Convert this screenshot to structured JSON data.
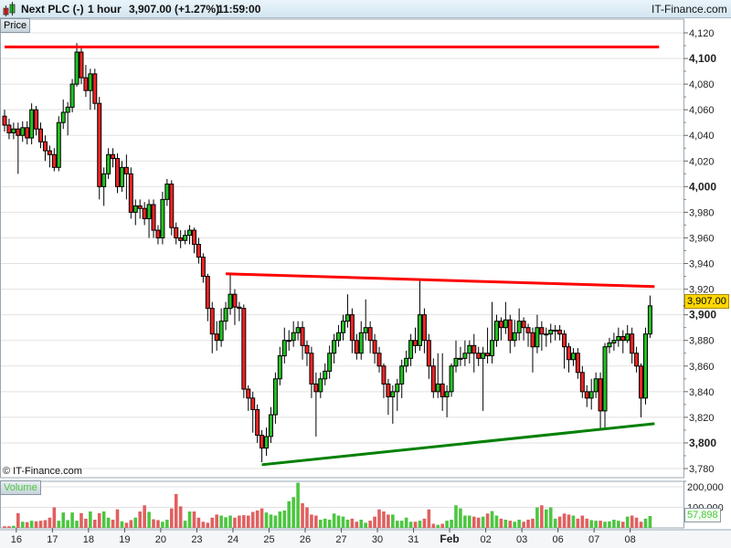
{
  "header": {
    "instrument": "Next PLC (-)",
    "interval": "1 hour",
    "price_change": "3,907.00 (+1.27%)",
    "time": "11:59:00",
    "brand": "IT-Finance.com"
  },
  "panels": {
    "price_label": "Price",
    "volume_label": "Volume",
    "watermark": "© IT-Finance.com"
  },
  "last_price_label": "3,907.00",
  "last_volume_label": "57,898",
  "colors": {
    "up": "#22c322",
    "down": "#f22424",
    "resistance": "#ff0000",
    "support": "#008000",
    "price_tag": "#ffd700"
  },
  "chart_data": [
    {
      "type": "candlestick",
      "title": "",
      "y_ticks": [
        "4,120",
        "4,100",
        "4,080",
        "4,060",
        "4,040",
        "4,020",
        "4,000",
        "3,980",
        "3,960",
        "3,940",
        "3,920",
        "3,900",
        "3,880",
        "3,860",
        "3,840",
        "3,820",
        "3,800",
        "3,780"
      ],
      "ylim": [
        3775,
        4130
      ],
      "x_labels": [
        "16",
        "17",
        "18",
        "19",
        "20",
        "23",
        "24",
        "25",
        "26",
        "27",
        "30",
        "31",
        "Feb",
        "02",
        "03",
        "06",
        "07",
        "08"
      ],
      "grid": true,
      "open": [
        4055,
        4048,
        4042,
        4045,
        4040,
        4046,
        4038,
        4060,
        4045,
        4035,
        4028,
        4025,
        4015,
        4050,
        4058,
        4062,
        4080,
        4105,
        4085,
        4075,
        4088,
        4065,
        4000,
        4010,
        4025,
        4022,
        4000,
        4015,
        4010,
        3980,
        3985,
        3983,
        3975,
        3986,
        3966,
        3960,
        3990,
        4002,
        3968,
        3960,
        3958,
        3962,
        3966,
        3955,
        3945,
        3930,
        3905,
        3885,
        3880,
        3895,
        3905,
        3916,
        3906,
        3905,
        3842,
        3835,
        3826,
        3806,
        3796,
        3805,
        3822,
        3850,
        3868,
        3880,
        3880,
        3886,
        3890,
        3876,
        3870,
        3846,
        3840,
        3850,
        3856,
        3870,
        3880,
        3886,
        3895,
        3900,
        3880,
        3870,
        3886,
        3890,
        3880,
        3870,
        3860,
        3846,
        3836,
        3840,
        3846,
        3860,
        3866,
        3880,
        3876,
        3900,
        3880,
        3860,
        3840,
        3846,
        3836,
        3840,
        3860,
        3866,
        3866,
        3870,
        3876,
        3870,
        3866,
        3870,
        3868,
        3880,
        3895,
        3890,
        3896,
        3880,
        3886,
        3895,
        3890,
        3886,
        3875,
        3890,
        3885,
        3885,
        3888,
        3888,
        3885,
        3875,
        3865,
        3870,
        3855,
        3840,
        3835,
        3840,
        3850,
        3825,
        3875,
        3878,
        3880,
        3883,
        3880,
        3885,
        3870,
        3860,
        3835,
        3885
      ],
      "high": [
        4060,
        4053,
        4050,
        4050,
        4051,
        4051,
        4065,
        4063,
        4050,
        4040,
        4032,
        4030,
        4055,
        4068,
        4066,
        4084,
        4112,
        4108,
        4095,
        4092,
        4092,
        4070,
        4015,
        4030,
        4030,
        4026,
        4020,
        4025,
        4015,
        3990,
        3990,
        3988,
        3990,
        3990,
        3970,
        3996,
        4006,
        4005,
        3972,
        3966,
        3966,
        3970,
        3968,
        3960,
        3948,
        3932,
        3910,
        3895,
        3905,
        3910,
        3932,
        3920,
        3910,
        3908,
        3845,
        3840,
        3830,
        3810,
        3812,
        3828,
        3855,
        3875,
        3890,
        3888,
        3895,
        3895,
        3895,
        3880,
        3875,
        3855,
        3855,
        3862,
        3876,
        3885,
        3892,
        3900,
        3916,
        3905,
        3885,
        3895,
        3912,
        3895,
        3885,
        3875,
        3862,
        3850,
        3845,
        3850,
        3865,
        3872,
        3885,
        3890,
        3928,
        3905,
        3885,
        3866,
        3870,
        3870,
        3845,
        3862,
        3880,
        3875,
        3880,
        3880,
        3885,
        3875,
        3875,
        3890,
        3910,
        3900,
        3898,
        3910,
        3900,
        3896,
        3905,
        3898,
        3893,
        3890,
        3900,
        3895,
        3890,
        3893,
        3892,
        3892,
        3888,
        3878,
        3874,
        3874,
        3860,
        3845,
        3850,
        3855,
        3855,
        3878,
        3882,
        3886,
        3890,
        3888,
        3892,
        3890,
        3875,
        3862,
        3890,
        3915
      ],
      "low": [
        4043,
        4037,
        4037,
        4010,
        4035,
        4033,
        4033,
        4040,
        4030,
        4020,
        4015,
        4012,
        4012,
        4045,
        4040,
        4058,
        4078,
        4080,
        4070,
        4060,
        4060,
        3990,
        3985,
        4006,
        4015,
        3995,
        3996,
        3990,
        3975,
        3970,
        3975,
        3970,
        3960,
        3960,
        3955,
        3955,
        3985,
        3962,
        3955,
        3952,
        3955,
        3955,
        3948,
        3940,
        3925,
        3895,
        3870,
        3872,
        3875,
        3888,
        3900,
        3892,
        3895,
        3835,
        3825,
        3808,
        3800,
        3785,
        3790,
        3800,
        3815,
        3845,
        3862,
        3872,
        3875,
        3880,
        3865,
        3860,
        3835,
        3805,
        3835,
        3845,
        3850,
        3862,
        3875,
        3880,
        3890,
        3870,
        3865,
        3865,
        3880,
        3870,
        3862,
        3855,
        3835,
        3822,
        3815,
        3825,
        3835,
        3855,
        3860,
        3870,
        3872,
        3870,
        3850,
        3835,
        3835,
        3825,
        3820,
        3836,
        3855,
        3860,
        3860,
        3862,
        3855,
        3860,
        3825,
        3862,
        3862,
        3875,
        3880,
        3885,
        3870,
        3875,
        3880,
        3880,
        3875,
        3855,
        3870,
        3872,
        3875,
        3878,
        3880,
        3880,
        3858,
        3855,
        3860,
        3850,
        3835,
        3828,
        3826,
        3835,
        3810,
        3812,
        3870,
        3872,
        3875,
        3870,
        3878,
        3862,
        3855,
        3820,
        3830,
        3882
      ],
      "close": [
        4048,
        4042,
        4045,
        4040,
        4046,
        4038,
        4060,
        4045,
        4035,
        4028,
        4025,
        4015,
        4050,
        4058,
        4062,
        4080,
        4105,
        4085,
        4075,
        4088,
        4065,
        4000,
        4010,
        4025,
        4022,
        4000,
        4015,
        4010,
        3980,
        3985,
        3983,
        3975,
        3986,
        3966,
        3960,
        3990,
        4002,
        3968,
        3960,
        3958,
        3962,
        3966,
        3955,
        3945,
        3930,
        3905,
        3885,
        3880,
        3895,
        3905,
        3916,
        3906,
        3905,
        3842,
        3835,
        3826,
        3806,
        3796,
        3805,
        3822,
        3850,
        3868,
        3880,
        3880,
        3886,
        3890,
        3876,
        3870,
        3846,
        3840,
        3850,
        3856,
        3870,
        3880,
        3886,
        3895,
        3900,
        3880,
        3870,
        3886,
        3890,
        3880,
        3870,
        3860,
        3846,
        3836,
        3840,
        3846,
        3860,
        3866,
        3880,
        3876,
        3900,
        3880,
        3860,
        3840,
        3846,
        3836,
        3840,
        3860,
        3866,
        3866,
        3870,
        3876,
        3870,
        3866,
        3870,
        3868,
        3880,
        3895,
        3890,
        3896,
        3880,
        3886,
        3895,
        3890,
        3886,
        3875,
        3890,
        3885,
        3885,
        3888,
        3888,
        3885,
        3875,
        3865,
        3870,
        3855,
        3840,
        3835,
        3840,
        3850,
        3825,
        3875,
        3878,
        3880,
        3883,
        3880,
        3885,
        3870,
        3860,
        3835,
        3885,
        3907
      ],
      "trendlines": [
        {
          "name": "resistance-horizontal",
          "color": "#ff0000",
          "from_bar": 0,
          "to_bar": 145,
          "from_price": 4109,
          "to_price": 4109
        },
        {
          "name": "resistance-descending",
          "color": "#ff0000",
          "from_bar": 49,
          "to_bar": 144,
          "from_price": 3932,
          "to_price": 3922
        },
        {
          "name": "support-ascending",
          "color": "#008000",
          "from_bar": 57,
          "to_bar": 144,
          "from_price": 3783,
          "to_price": 3815
        }
      ]
    },
    {
      "type": "bar",
      "title": "Volume",
      "y_ticks": [
        "200,000",
        "100,000"
      ],
      "values": [
        8000,
        8000,
        10000,
        72000,
        30000,
        28000,
        35000,
        32000,
        35000,
        38000,
        50000,
        100000,
        35000,
        75000,
        38000,
        75000,
        35000,
        72000,
        45000,
        80000,
        40000,
        72000,
        80000,
        50000,
        40000,
        90000,
        32000,
        25000,
        38000,
        50000,
        80000,
        110000,
        78000,
        42000,
        38000,
        30000,
        40000,
        95000,
        165000,
        105000,
        35000,
        80000,
        80000,
        50000,
        30000,
        25000,
        50000,
        65000,
        60000,
        52000,
        60000,
        50000,
        60000,
        62000,
        60000,
        78000,
        85000,
        95000,
        75000,
        65000,
        60000,
        80000,
        85000,
        130000,
        150000,
        220000,
        120000,
        100000,
        65000,
        60000,
        40000,
        45000,
        40000,
        70000,
        60000,
        55000,
        40000,
        45000,
        30000,
        40000,
        25000,
        35000,
        55000,
        90000,
        80000,
        65000,
        65000,
        35000,
        35000,
        50000,
        30000,
        30000,
        35000,
        45000,
        90000,
        20000,
        15000,
        20000,
        35000,
        40000,
        110000,
        95000,
        60000,
        60000,
        55000,
        50000,
        55000,
        70000,
        82000,
        60000,
        45000,
        40000,
        35000,
        30000,
        40000,
        30000,
        40000,
        45000,
        100000,
        110000,
        90000,
        100000,
        45000,
        55000,
        70000,
        65000,
        60000,
        45000,
        60000,
        45000,
        38000,
        35000,
        35000,
        30000,
        32000,
        40000,
        35000,
        30000,
        55000,
        60000,
        50000,
        30000,
        45000,
        57898
      ]
    }
  ]
}
